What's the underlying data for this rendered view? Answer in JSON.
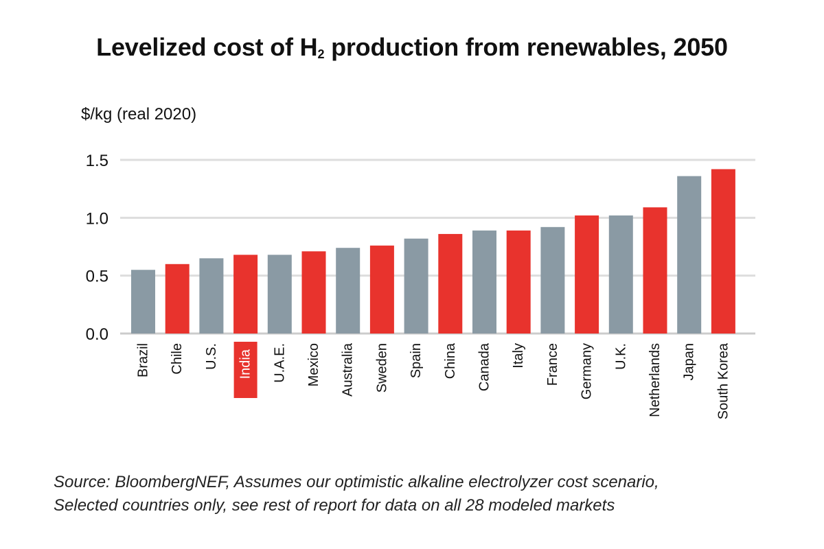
{
  "title": {
    "main": "Levelized cost of H",
    "sub": "2",
    "rest": " production from renewables, 2050"
  },
  "ylabel": "$/kg (real 2020)",
  "source": [
    "Source: BloombergNEF, Assumes our optimistic alkaline electrolyzer cost scenario,",
    "Selected countries only, see rest of report for data on all 28 modeled markets"
  ],
  "colors": {
    "red": "#e8332d",
    "gray": "#8a9aa4",
    "grid": "#dddddd",
    "axis": "#cccccc",
    "highlight_label_bg": "#e8332d"
  },
  "chart_data": {
    "type": "bar",
    "ylim": [
      0,
      1.5
    ],
    "yticks": [
      "0.0",
      "0.5",
      "1.0",
      "1.5"
    ],
    "ytick_values": [
      0,
      0.5,
      1.0,
      1.5
    ],
    "grid": true,
    "highlighted_category": "India",
    "categories": [
      "Brazil",
      "Chile",
      "U.S.",
      "India",
      "U.A.E.",
      "Mexico",
      "Australia",
      "Sweden",
      "Spain",
      "China",
      "Canada",
      "Italy",
      "France",
      "Germany",
      "U.K.",
      "Netherlands",
      "Japan",
      "South Korea"
    ],
    "values": [
      0.55,
      0.6,
      0.65,
      0.68,
      0.68,
      0.71,
      0.74,
      0.76,
      0.82,
      0.86,
      0.89,
      0.89,
      0.92,
      1.02,
      1.02,
      1.09,
      1.36,
      1.42
    ],
    "bar_colors": [
      "gray",
      "red",
      "gray",
      "red",
      "gray",
      "red",
      "gray",
      "red",
      "gray",
      "red",
      "gray",
      "red",
      "gray",
      "red",
      "gray",
      "red",
      "gray",
      "red"
    ]
  }
}
